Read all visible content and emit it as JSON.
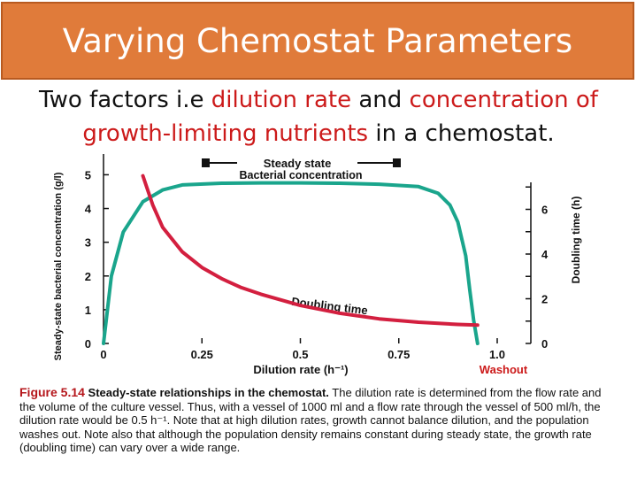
{
  "slide": {
    "title": "Varying Chemostat Parameters",
    "intro_parts": [
      "Two factors i.e ",
      "dilution rate",
      " and ",
      "concentration of growth-limiting nutrients",
      " in a chemostat."
    ]
  },
  "chart_data": {
    "type": "line",
    "xlabel": "Dilution rate (h⁻¹)",
    "ylabel_left": "Steady-state bacterial concentration (g/l)",
    "ylabel_right": "Doubling time (h)",
    "xlim": [
      0,
      1.0
    ],
    "ylim_left": [
      0,
      5.3
    ],
    "ylim_right": [
      0,
      8
    ],
    "x_ticks": [
      "0",
      "0.25",
      "0.5",
      "0.75",
      "1.0"
    ],
    "y_ticks_left": [
      "0",
      "1",
      "2",
      "3",
      "4",
      "5"
    ],
    "y_ticks_right": [
      "0",
      "2",
      "4",
      "6"
    ],
    "annotations": {
      "steady_state": "Steady state",
      "bacterial_concentration": "Bacterial concentration",
      "doubling_time": "Doubling time",
      "washout": "Washout"
    },
    "series": [
      {
        "name": "Bacterial concentration",
        "axis": "left",
        "color": "#1aa58c",
        "x": [
          0.0,
          0.02,
          0.05,
          0.1,
          0.15,
          0.2,
          0.3,
          0.4,
          0.5,
          0.6,
          0.7,
          0.8,
          0.85,
          0.88,
          0.9,
          0.92,
          0.93,
          0.94,
          0.95
        ],
        "y": [
          0.0,
          2.0,
          3.3,
          4.2,
          4.55,
          4.7,
          4.75,
          4.76,
          4.76,
          4.75,
          4.72,
          4.65,
          4.45,
          4.1,
          3.6,
          2.6,
          1.6,
          0.7,
          0.0
        ]
      },
      {
        "name": "Doubling time",
        "axis": "right",
        "color": "#d31f3f",
        "x": [
          0.1,
          0.125,
          0.15,
          0.2,
          0.25,
          0.3,
          0.35,
          0.4,
          0.5,
          0.6,
          0.7,
          0.8,
          0.9,
          0.95
        ],
        "y": [
          7.5,
          6.2,
          5.2,
          4.1,
          3.4,
          2.9,
          2.5,
          2.2,
          1.7,
          1.35,
          1.1,
          0.95,
          0.85,
          0.82
        ]
      }
    ]
  },
  "caption": {
    "label": "Figure 5.14",
    "heading": "Steady-state relationships in the chemostat.",
    "text": " The dilution rate is determined from the flow rate and the volume of the culture vessel. Thus, with a vessel of 1000 ml and a flow rate through the vessel of 500 ml/h, the dilution rate would be 0.5 h⁻¹. Note that at high dilution rates, growth cannot balance dilution, and the population washes out. Note also that although the population density remains constant during steady state, the growth rate (doubling time) can vary over a wide range."
  }
}
